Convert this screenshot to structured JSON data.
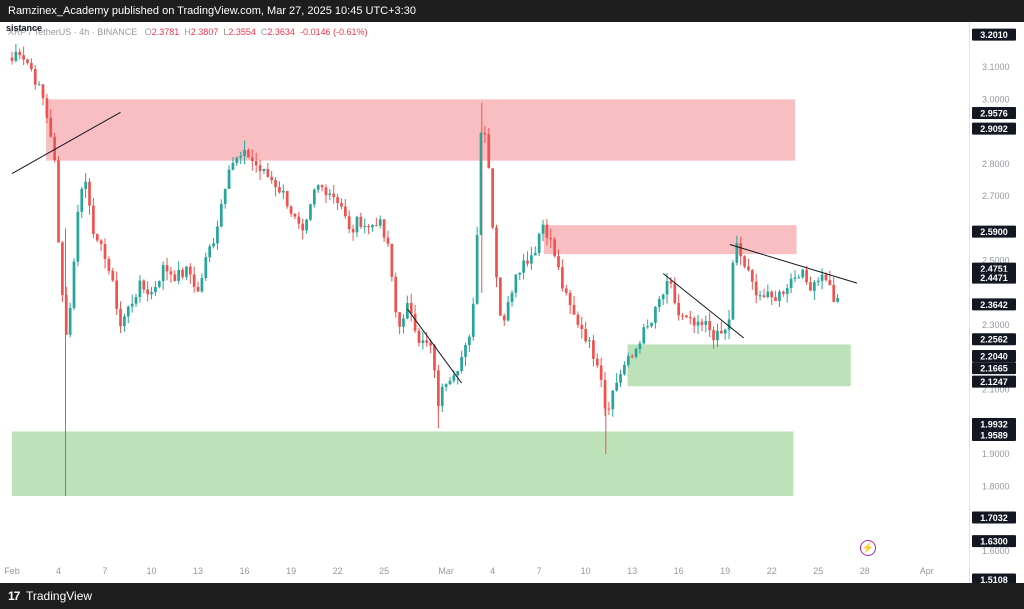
{
  "header": {
    "publish_line": "Ramzinex_Academy published on TradingView.com, Mar 27, 2025 10:45 UTC+3:30"
  },
  "footer": {
    "logo_text": "TradingView",
    "logo_glyph": "17"
  },
  "legend": {
    "partial_label": "sistance",
    "symbol_line": "XRP / TetherUS · 4h · BINANCE",
    "o_label": "O",
    "o": "2.3781",
    "h_label": "H",
    "h": "2.3807",
    "l_label": "L",
    "l": "2.3554",
    "c_label": "C",
    "c": "2.3634",
    "change": "-0.0146 (-0.61%)"
  },
  "colors": {
    "up": "#26a69a",
    "down": "#ef5350",
    "resistance_zone": "#f8bbbf",
    "support_zone": "#b6dfb1",
    "price_tag": "#131722",
    "axis_text": "#9598a1"
  },
  "icons": {
    "flash": "flash-icon"
  },
  "chart_data": {
    "type": "candlestick",
    "symbol": "XRP / TetherUS",
    "interval": "4h",
    "exchange": "BINANCE",
    "ylim": [
      1.5,
      3.24
    ],
    "y_ticks": [
      "3.1000",
      "3.0000",
      "2.8000",
      "2.7000",
      "2.5000",
      "2.3000",
      "2.1000",
      "1.9000",
      "1.8000",
      "1.6000"
    ],
    "x_ticks": [
      {
        "label": "Feb",
        "day": 0
      },
      {
        "label": "4",
        "day": 3
      },
      {
        "label": "7",
        "day": 6
      },
      {
        "label": "10",
        "day": 9
      },
      {
        "label": "13",
        "day": 12
      },
      {
        "label": "16",
        "day": 15
      },
      {
        "label": "19",
        "day": 18
      },
      {
        "label": "22",
        "day": 21
      },
      {
        "label": "25",
        "day": 24
      },
      {
        "label": "Mar",
        "day": 28
      },
      {
        "label": "4",
        "day": 31
      },
      {
        "label": "7",
        "day": 34
      },
      {
        "label": "10",
        "day": 37
      },
      {
        "label": "13",
        "day": 40
      },
      {
        "label": "16",
        "day": 43
      },
      {
        "label": "19",
        "day": 46
      },
      {
        "label": "22",
        "day": 49
      },
      {
        "label": "25",
        "day": 52
      },
      {
        "label": "28",
        "day": 55
      },
      {
        "label": "Apr",
        "day": 59
      }
    ],
    "price_labels": [
      {
        "value": "3.2010",
        "y": 3.201
      },
      {
        "value": "2.9576",
        "y": 2.9576
      },
      {
        "value": "2.9092",
        "y": 2.9092
      },
      {
        "value": "2.5900",
        "y": 2.59
      },
      {
        "value": "2.4751",
        "y": 2.4751
      },
      {
        "value": "2.4471",
        "y": 2.4471
      },
      {
        "value": "2.3642",
        "y": 2.3642
      },
      {
        "value": "2.2562",
        "y": 2.2562
      },
      {
        "value": "2.2040",
        "y": 2.204
      },
      {
        "value": "2.1665",
        "y": 2.1665
      },
      {
        "value": "2.1247",
        "y": 2.1247
      },
      {
        "value": "1.9932",
        "y": 1.9932
      },
      {
        "value": "1.9589",
        "y": 1.9589
      },
      {
        "value": "1.7032",
        "y": 1.7032
      },
      {
        "value": "1.6300",
        "y": 1.63
      },
      {
        "value": "1.5108",
        "y": 1.5108
      }
    ],
    "zones": [
      {
        "kind": "resistance",
        "x0": 2.2,
        "x1": 50.5,
        "y_low": 2.81,
        "y_high": 3.0
      },
      {
        "kind": "resistance",
        "x0": 34.3,
        "x1": 50.6,
        "y_low": 2.52,
        "y_high": 2.61
      },
      {
        "kind": "support",
        "x0": 39.7,
        "x1": 54.1,
        "y_low": 2.11,
        "y_high": 2.24
      },
      {
        "kind": "support",
        "x0": 0.0,
        "x1": 50.4,
        "y_low": 1.77,
        "y_high": 1.97
      }
    ],
    "trendlines": [
      {
        "x0": 0.0,
        "y0": 2.77,
        "x1": 7.0,
        "y1": 2.96
      },
      {
        "x0": 25.5,
        "y0": 2.35,
        "x1": 29.0,
        "y1": 2.12
      },
      {
        "x0": 42.0,
        "y0": 2.46,
        "x1": 47.2,
        "y1": 2.26
      },
      {
        "x0": 46.3,
        "y0": 2.55,
        "x1": 54.5,
        "y1": 2.43
      }
    ],
    "anchors": [
      [
        0,
        3.12
      ],
      [
        0.4,
        3.16
      ],
      [
        1.2,
        3.1
      ],
      [
        2.0,
        3.0
      ],
      [
        2.7,
        2.85
      ],
      [
        3.0,
        2.55
      ],
      [
        3.5,
        2.27
      ],
      [
        3.9,
        2.42
      ],
      [
        4.3,
        2.7
      ],
      [
        4.8,
        2.75
      ],
      [
        5.4,
        2.55
      ],
      [
        6.0,
        2.52
      ],
      [
        6.6,
        2.4
      ],
      [
        7.0,
        2.3
      ],
      [
        7.5,
        2.35
      ],
      [
        8.2,
        2.42
      ],
      [
        9.0,
        2.4
      ],
      [
        9.8,
        2.48
      ],
      [
        10.6,
        2.45
      ],
      [
        11.4,
        2.47
      ],
      [
        12.0,
        2.4
      ],
      [
        12.6,
        2.52
      ],
      [
        13.1,
        2.58
      ],
      [
        14.0,
        2.8
      ],
      [
        15.2,
        2.83
      ],
      [
        16.0,
        2.78
      ],
      [
        16.8,
        2.75
      ],
      [
        17.6,
        2.7
      ],
      [
        18.3,
        2.62
      ],
      [
        18.8,
        2.57
      ],
      [
        19.6,
        2.73
      ],
      [
        20.4,
        2.72
      ],
      [
        21.2,
        2.68
      ],
      [
        21.8,
        2.58
      ],
      [
        22.4,
        2.63
      ],
      [
        23.0,
        2.6
      ],
      [
        23.6,
        2.63
      ],
      [
        24.3,
        2.53
      ],
      [
        24.8,
        2.32
      ],
      [
        25.2,
        2.3
      ],
      [
        25.6,
        2.37
      ],
      [
        26.3,
        2.25
      ],
      [
        27.0,
        2.23
      ],
      [
        27.5,
        2.06
      ],
      [
        28.0,
        2.13
      ],
      [
        28.8,
        2.18
      ],
      [
        29.6,
        2.26
      ],
      [
        30.0,
        2.58
      ],
      [
        30.3,
        2.98
      ],
      [
        30.7,
        2.82
      ],
      [
        31.0,
        2.62
      ],
      [
        31.3,
        2.42
      ],
      [
        31.6,
        2.3
      ],
      [
        32.0,
        2.36
      ],
      [
        32.5,
        2.47
      ],
      [
        33.1,
        2.5
      ],
      [
        33.7,
        2.53
      ],
      [
        34.2,
        2.62
      ],
      [
        34.6,
        2.58
      ],
      [
        35.1,
        2.5
      ],
      [
        35.6,
        2.4
      ],
      [
        36.2,
        2.33
      ],
      [
        36.8,
        2.29
      ],
      [
        37.4,
        2.22
      ],
      [
        37.9,
        2.18
      ],
      [
        38.3,
        2.03
      ],
      [
        38.8,
        2.1
      ],
      [
        39.4,
        2.17
      ],
      [
        40.0,
        2.2
      ],
      [
        40.6,
        2.27
      ],
      [
        41.2,
        2.3
      ],
      [
        41.8,
        2.38
      ],
      [
        42.4,
        2.43
      ],
      [
        43.0,
        2.33
      ],
      [
        43.6,
        2.31
      ],
      [
        44.2,
        2.29
      ],
      [
        44.8,
        2.3
      ],
      [
        45.4,
        2.26
      ],
      [
        46.0,
        2.28
      ],
      [
        46.3,
        2.33
      ],
      [
        46.6,
        2.56
      ],
      [
        47.2,
        2.49
      ],
      [
        47.8,
        2.42
      ],
      [
        48.4,
        2.39
      ],
      [
        49.0,
        2.38
      ],
      [
        49.6,
        2.4
      ],
      [
        50.2,
        2.44
      ],
      [
        50.8,
        2.47
      ],
      [
        51.4,
        2.42
      ],
      [
        52.0,
        2.45
      ],
      [
        52.5,
        2.45
      ],
      [
        53.0,
        2.38
      ],
      [
        53.4,
        2.36
      ]
    ]
  }
}
